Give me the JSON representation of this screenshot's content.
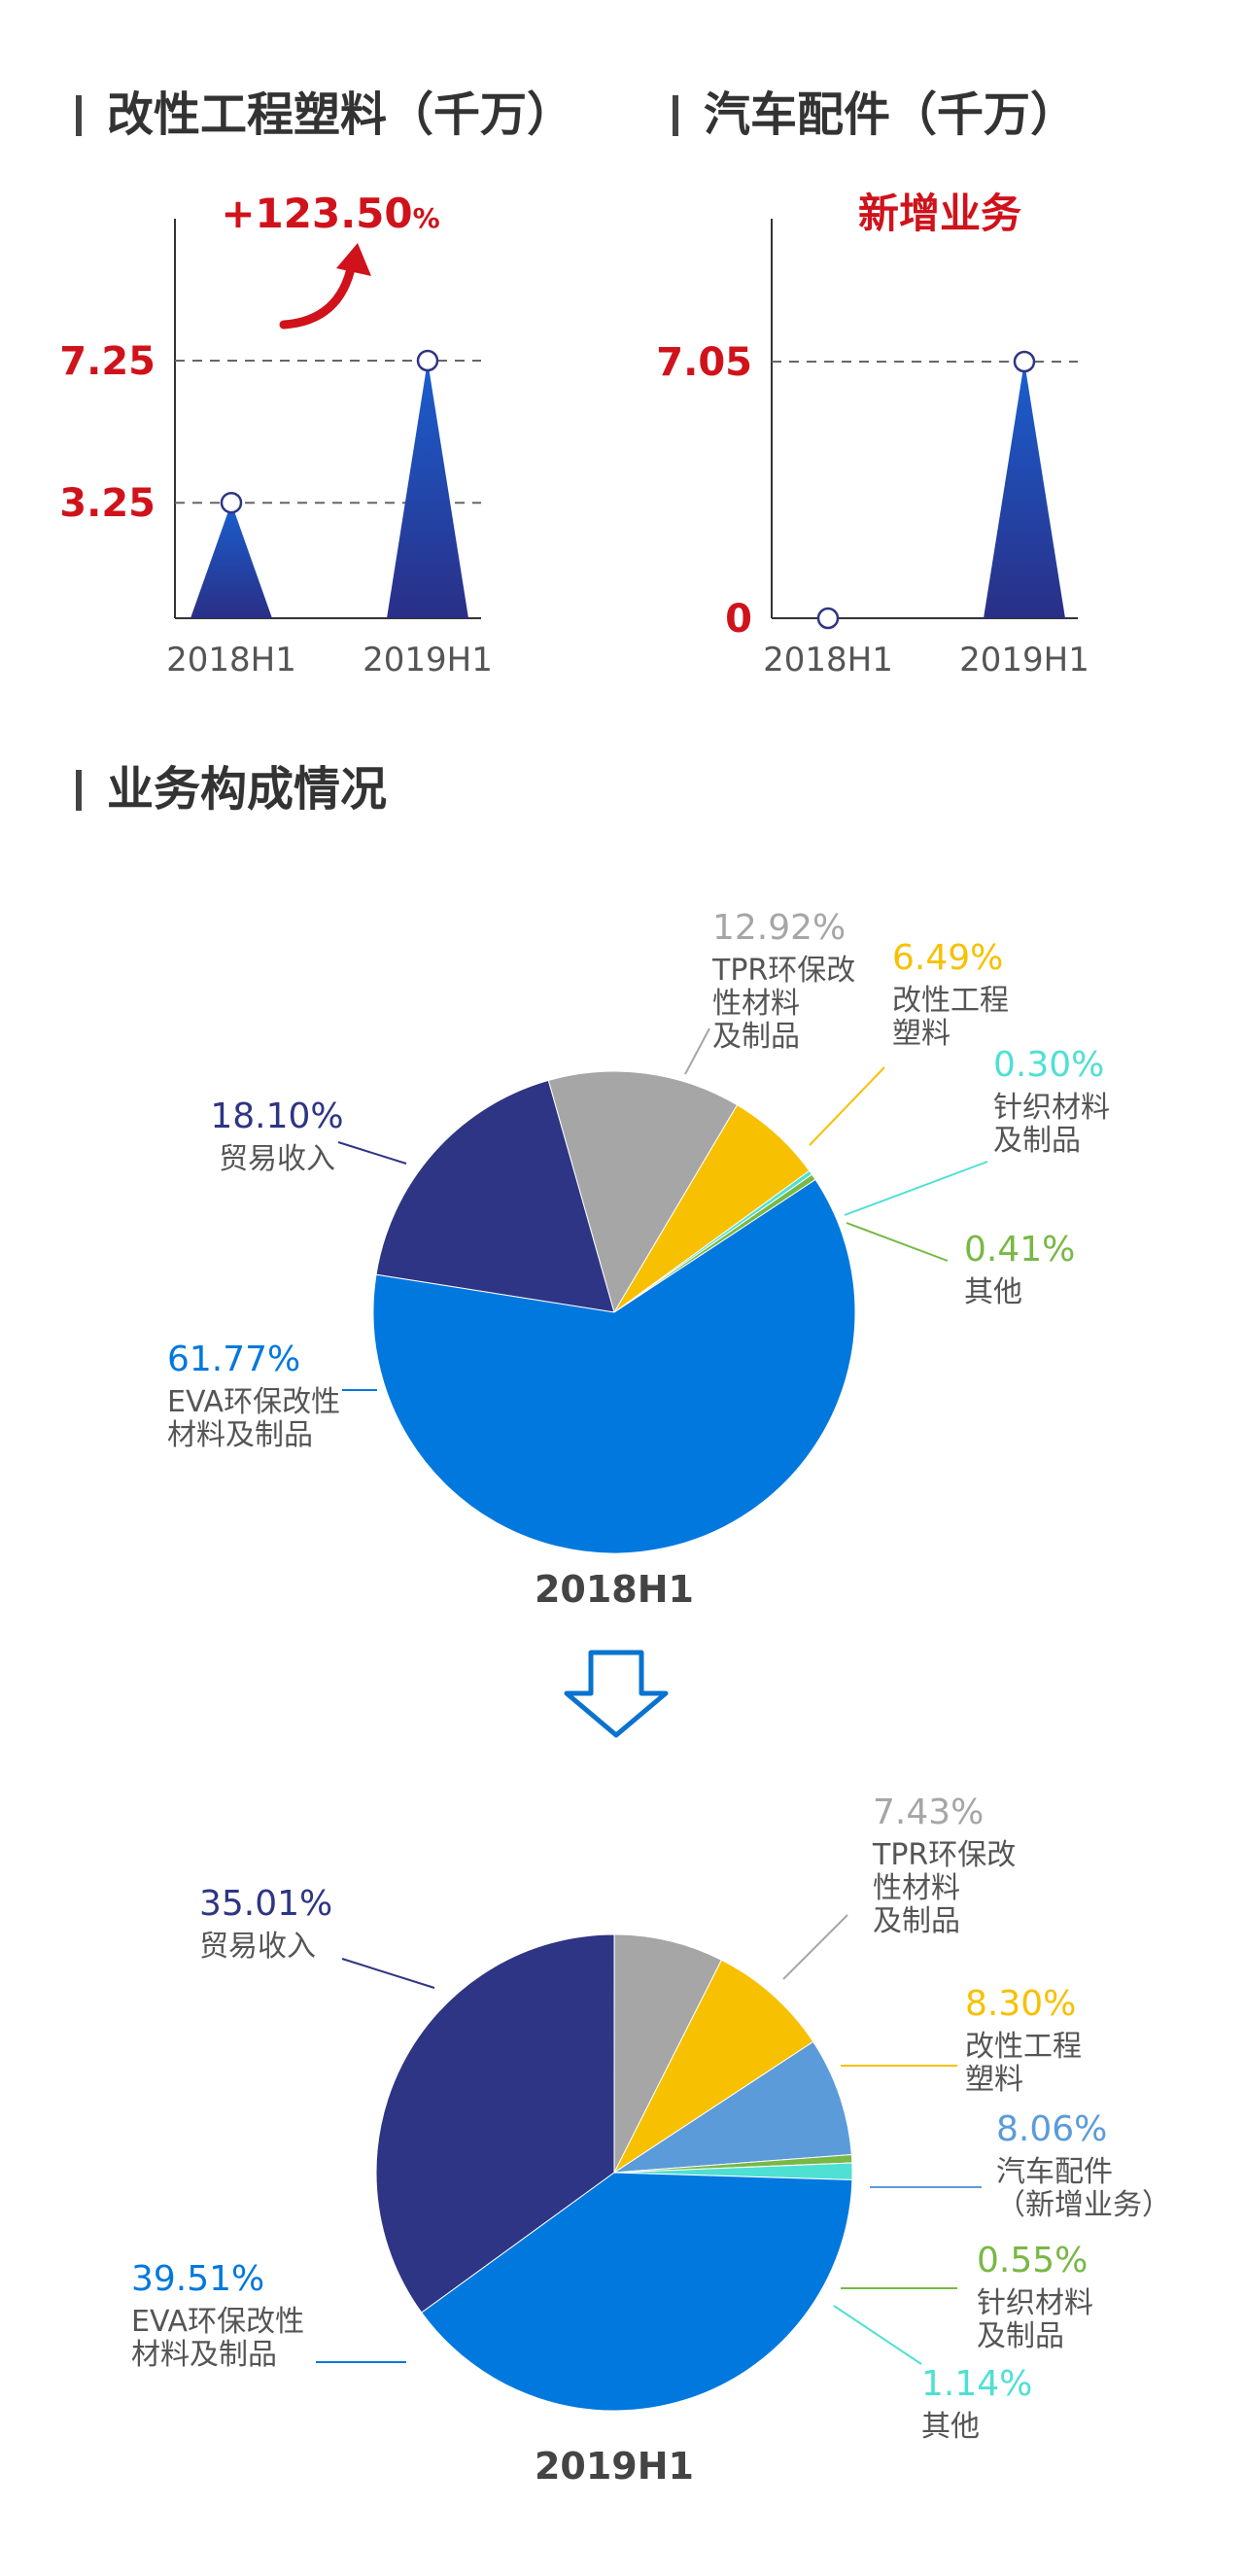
{
  "top_fragment": {
    "labels": [
      "2018H1",
      "2019H1",
      "2018H1",
      "2019H1"
    ]
  },
  "colors": {
    "red": "#d0121b",
    "dark_navy": "#2e3584",
    "blue": "#0078de",
    "gray": "#a6a6a6",
    "yellow": "#f7c000",
    "cyan": "#4fe0d4",
    "green": "#78b845",
    "light_blue": "#5b9bd9",
    "text_gray": "#555555"
  },
  "charts": [
    {
      "title": "改性工程塑料（千万）",
      "annotation": "+123.50",
      "annotation_suffix": "%",
      "y_labels": [
        "7.25",
        "3.25"
      ],
      "categories": [
        "2018H1",
        "2019H1"
      ],
      "values": [
        3.25,
        7.25
      ]
    },
    {
      "title": "汽车配件（千万）",
      "annotation": "新增业务",
      "annotation_suffix": "",
      "y_labels": [
        "7.05",
        "0"
      ],
      "categories": [
        "2018H1",
        "2019H1"
      ],
      "values": [
        0,
        7.05
      ]
    }
  ],
  "section_title": "业务构成情况",
  "pies": [
    {
      "caption": "2018H1",
      "slices": [
        {
          "pct": "18.10%",
          "value": 18.1,
          "label_lines": [
            "贸易收入"
          ],
          "color": "#2e3584"
        },
        {
          "pct": "12.92%",
          "value": 12.92,
          "label_lines": [
            "TPR环保改",
            "性材料",
            "及制品"
          ],
          "color": "#a6a6a6"
        },
        {
          "pct": "6.49%",
          "value": 6.49,
          "label_lines": [
            "改性工程",
            "塑料"
          ],
          "color": "#f7c000"
        },
        {
          "pct": "0.30%",
          "value": 0.3,
          "label_lines": [
            "针织材料",
            "及制品"
          ],
          "color": "#4fe0d4"
        },
        {
          "pct": "0.41%",
          "value": 0.41,
          "label_lines": [
            "其他"
          ],
          "color": "#78b845"
        },
        {
          "pct": "61.77%",
          "value": 61.77,
          "label_lines": [
            "EVA环保改性",
            "材料及制品"
          ],
          "color": "#0078de"
        }
      ]
    },
    {
      "caption": "2019H1",
      "slices": [
        {
          "pct": "35.01%",
          "value": 35.01,
          "label_lines": [
            "贸易收入"
          ],
          "color": "#2e3584"
        },
        {
          "pct": "7.43%",
          "value": 7.43,
          "label_lines": [
            "TPR环保改",
            "性材料",
            "及制品"
          ],
          "color": "#a6a6a6"
        },
        {
          "pct": "8.30%",
          "value": 8.3,
          "label_lines": [
            "改性工程",
            "塑料"
          ],
          "color": "#f7c000"
        },
        {
          "pct": "8.06%",
          "value": 8.06,
          "label_lines": [
            "汽车配件",
            "（新增业务）"
          ],
          "color": "#5b9bd9"
        },
        {
          "pct": "0.55%",
          "value": 0.55,
          "label_lines": [
            "针织材料",
            "及制品"
          ],
          "color": "#78b845"
        },
        {
          "pct": "1.14%",
          "value": 1.14,
          "label_lines": [
            "其他"
          ],
          "color": "#4fe0d4"
        },
        {
          "pct": "39.51%",
          "value": 39.51,
          "label_lines": [
            "EVA环保改性",
            "材料及制品"
          ],
          "color": "#0078de"
        }
      ]
    }
  ],
  "chart_data": [
    {
      "type": "bar",
      "title": "改性工程塑料（千万）",
      "categories": [
        "2018H1",
        "2019H1"
      ],
      "values": [
        3.25,
        7.25
      ],
      "annotations": [
        "+123.50%"
      ]
    },
    {
      "type": "bar",
      "title": "汽车配件（千万）",
      "categories": [
        "2018H1",
        "2019H1"
      ],
      "values": [
        0,
        7.05
      ],
      "annotations": [
        "新增业务"
      ]
    },
    {
      "type": "pie",
      "title": "2018H1",
      "series": [
        {
          "name": "贸易收入",
          "value": 18.1
        },
        {
          "name": "TPR环保改性材料及制品",
          "value": 12.92
        },
        {
          "name": "改性工程塑料",
          "value": 6.49
        },
        {
          "name": "针织材料及制品",
          "value": 0.3
        },
        {
          "name": "其他",
          "value": 0.41
        },
        {
          "name": "EVA环保改性材料及制品",
          "value": 61.77
        }
      ]
    },
    {
      "type": "pie",
      "title": "2019H1",
      "series": [
        {
          "name": "贸易收入",
          "value": 35.01
        },
        {
          "name": "TPR环保改性材料及制品",
          "value": 7.43
        },
        {
          "name": "改性工程塑料",
          "value": 8.3
        },
        {
          "name": "汽车配件（新增业务）",
          "value": 8.06
        },
        {
          "name": "针织材料及制品",
          "value": 0.55
        },
        {
          "name": "其他",
          "value": 1.14
        },
        {
          "name": "EVA环保改性材料及制品",
          "value": 39.51
        }
      ]
    }
  ]
}
